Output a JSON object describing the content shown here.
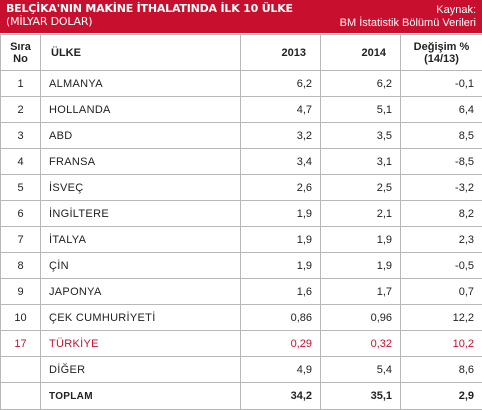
{
  "header": {
    "title": "BELÇİKA'NIN MAKİNE İTHALATINDA İLK 10 ÜLKE",
    "subtitle": "(MİLYAR DOLAR)",
    "source_label": "Kaynak:",
    "source_value": "BM İstatistik Bölümü Verileri",
    "accent_color": "#c8102e"
  },
  "table": {
    "columns": {
      "no_line1": "Sıra",
      "no_line2": "No",
      "country": "ÜLKE",
      "year1": "2013",
      "year2": "2014",
      "change_line1": "Değişim %",
      "change_line2": "(14/13)"
    },
    "rows": [
      {
        "no": "1",
        "country": "ALMANYA",
        "y2013": "6,2",
        "y2014": "6,2",
        "change": "-0,1"
      },
      {
        "no": "2",
        "country": "HOLLANDA",
        "y2013": "4,7",
        "y2014": "5,1",
        "change": "6,4"
      },
      {
        "no": "3",
        "country": "ABD",
        "y2013": "3,2",
        "y2014": "3,5",
        "change": "8,5"
      },
      {
        "no": "4",
        "country": "FRANSA",
        "y2013": "3,4",
        "y2014": "3,1",
        "change": "-8,5"
      },
      {
        "no": "5",
        "country": "İSVEÇ",
        "y2013": "2,6",
        "y2014": "2,5",
        "change": "-3,2"
      },
      {
        "no": "6",
        "country": "İNGİLTERE",
        "y2013": "1,9",
        "y2014": "2,1",
        "change": "8,2"
      },
      {
        "no": "7",
        "country": "İTALYA",
        "y2013": "1,9",
        "y2014": "1,9",
        "change": "2,3"
      },
      {
        "no": "8",
        "country": "ÇİN",
        "y2013": "1,9",
        "y2014": "1,9",
        "change": "-0,5"
      },
      {
        "no": "9",
        "country": "JAPONYA",
        "y2013": "1,6",
        "y2014": "1,7",
        "change": "0,7"
      },
      {
        "no": "10",
        "country": "ÇEK CUMHURİYETİ",
        "y2013": "0,86",
        "y2014": "0,96",
        "change": "12,2"
      },
      {
        "no": "17",
        "country": "TÜRKİYE",
        "y2013": "0,29",
        "y2014": "0,32",
        "change": "10,2",
        "highlight": true
      },
      {
        "no": "",
        "country": "DİĞER",
        "y2013": "4,9",
        "y2014": "5,4",
        "change": "8,6"
      }
    ],
    "total": {
      "no": "",
      "country": "TOPLAM",
      "y2013": "34,2",
      "y2014": "35,1",
      "change": "2,9"
    },
    "highlight_color": "#c8102e"
  }
}
